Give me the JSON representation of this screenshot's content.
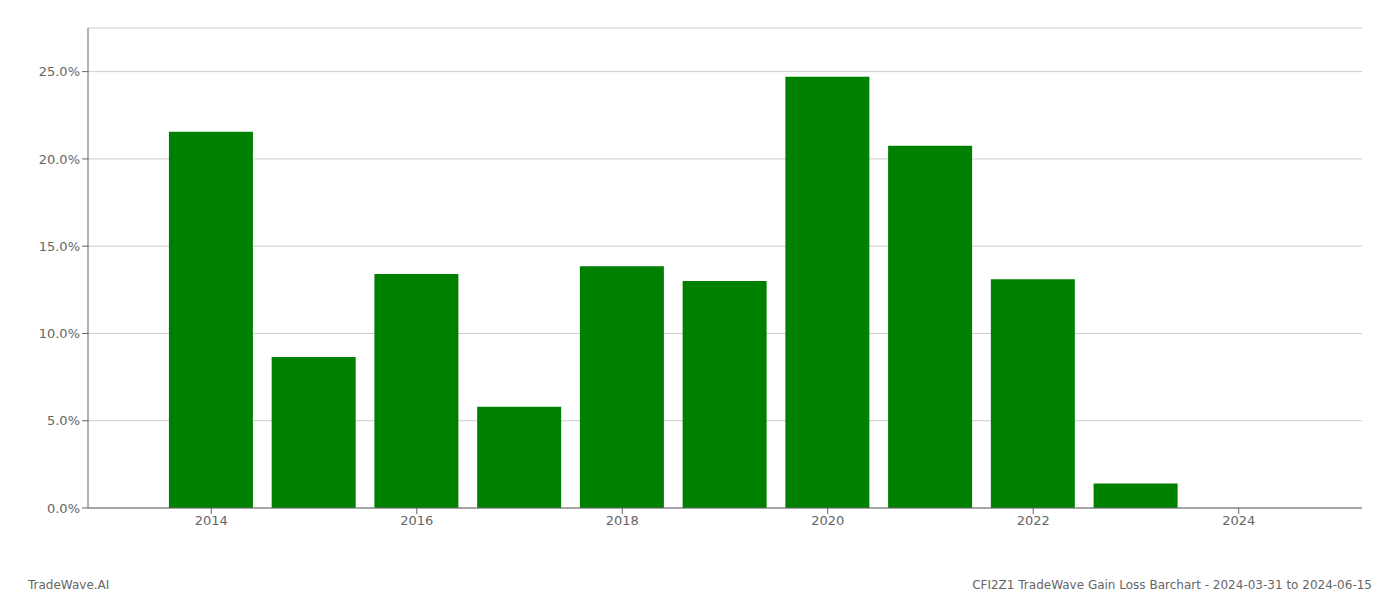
{
  "chart_data": {
    "type": "bar",
    "title": "CFI2Z1 TradeWave Gain Loss Barchart - 2024-03-31 to 2024-06-15",
    "annotations": [
      "TradeWave.AI"
    ],
    "x": [
      2014,
      2015,
      2016,
      2017,
      2018,
      2019,
      2020,
      2021,
      2022,
      2023
    ],
    "values": [
      0.2155,
      0.0865,
      0.134,
      0.058,
      0.1385,
      0.13,
      0.247,
      0.2075,
      0.131,
      0.014
    ],
    "color": "#008000",
    "xlim": [
      2012.8,
      2025.2
    ],
    "xticks": [
      2014,
      2016,
      2018,
      2020,
      2022,
      2024
    ],
    "ylim": [
      0,
      0.275
    ],
    "yticks": [
      {
        "value": 0.0,
        "label": "0.0%"
      },
      {
        "value": 0.05,
        "label": "5.0%"
      },
      {
        "value": 0.1,
        "label": "10.0%"
      },
      {
        "value": 0.15,
        "label": "15.0%"
      },
      {
        "value": 0.2,
        "label": "20.0%"
      },
      {
        "value": 0.25,
        "label": "25.0%"
      }
    ],
    "grid": true
  }
}
